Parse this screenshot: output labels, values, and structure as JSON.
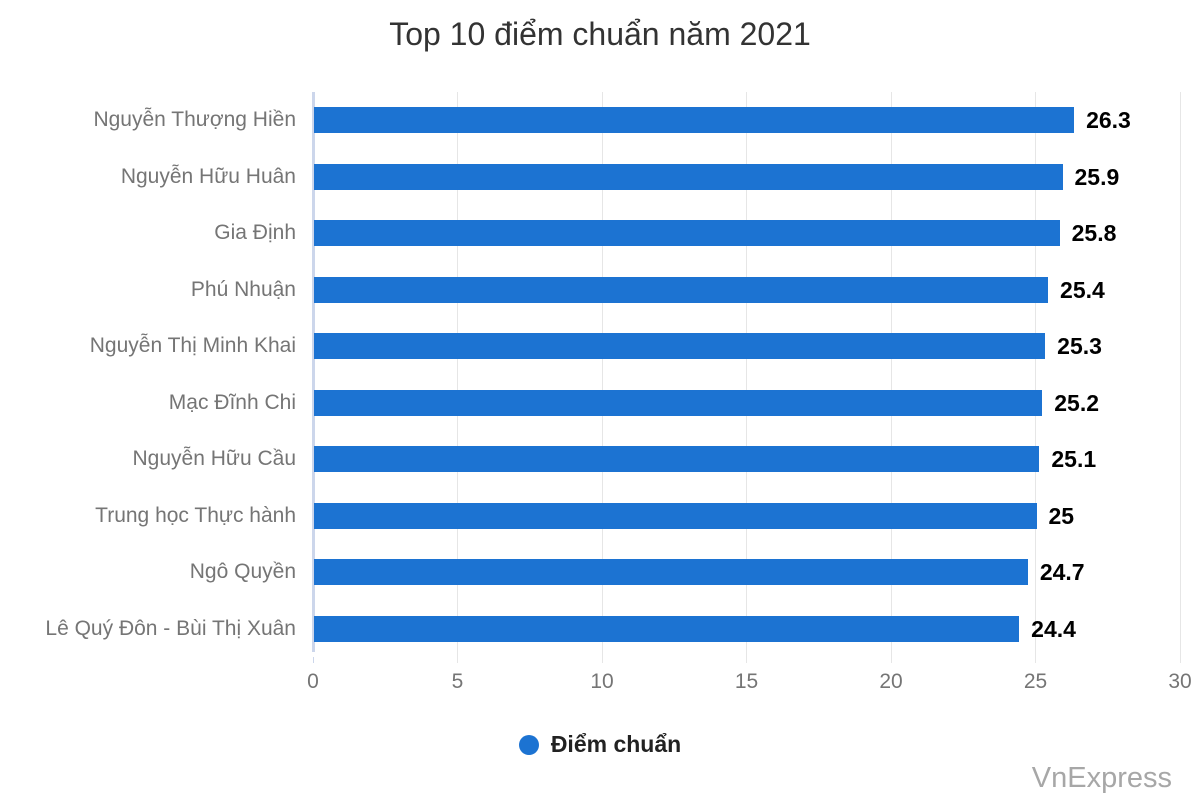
{
  "title": "Top 10 điểm chuẩn năm 2021",
  "watermark": "VnExpress",
  "legend": {
    "label": "Điểm chuẩn",
    "marker_color": "#1c73d2"
  },
  "chart_data": {
    "type": "bar",
    "orientation": "horizontal",
    "title": "Top 10 điểm chuẩn năm 2021",
    "xlabel": "",
    "ylabel": "",
    "categories": [
      "Nguyễn Thượng Hiền",
      "Nguyễn Hữu Huân",
      "Gia Định",
      "Phú Nhuận",
      "Nguyễn Thị Minh Khai",
      "Mạc Đĩnh Chi",
      "Nguyễn Hữu Cầu",
      "Trung học Thực hành",
      "Ngô Quyền",
      "Lê Quý Đôn - Bùi Thị Xuân"
    ],
    "series": [
      {
        "name": "Điểm chuẩn",
        "values": [
          26.3,
          25.9,
          25.8,
          25.4,
          25.3,
          25.2,
          25.1,
          25,
          24.7,
          24.4
        ],
        "value_labels": [
          "26.3",
          "25.9",
          "25.8",
          "25.4",
          "25.3",
          "25.2",
          "25.1",
          "25",
          "24.7",
          "24.4"
        ]
      }
    ],
    "xlim": [
      0,
      30
    ],
    "ticks": [
      0,
      5,
      10,
      15,
      20,
      25,
      30
    ],
    "grid": true,
    "legend_position": "bottom",
    "bar_color": "#1c73d2",
    "gridline_color": "#e6e6e6",
    "axis_line_color": "#ccd6eb"
  }
}
